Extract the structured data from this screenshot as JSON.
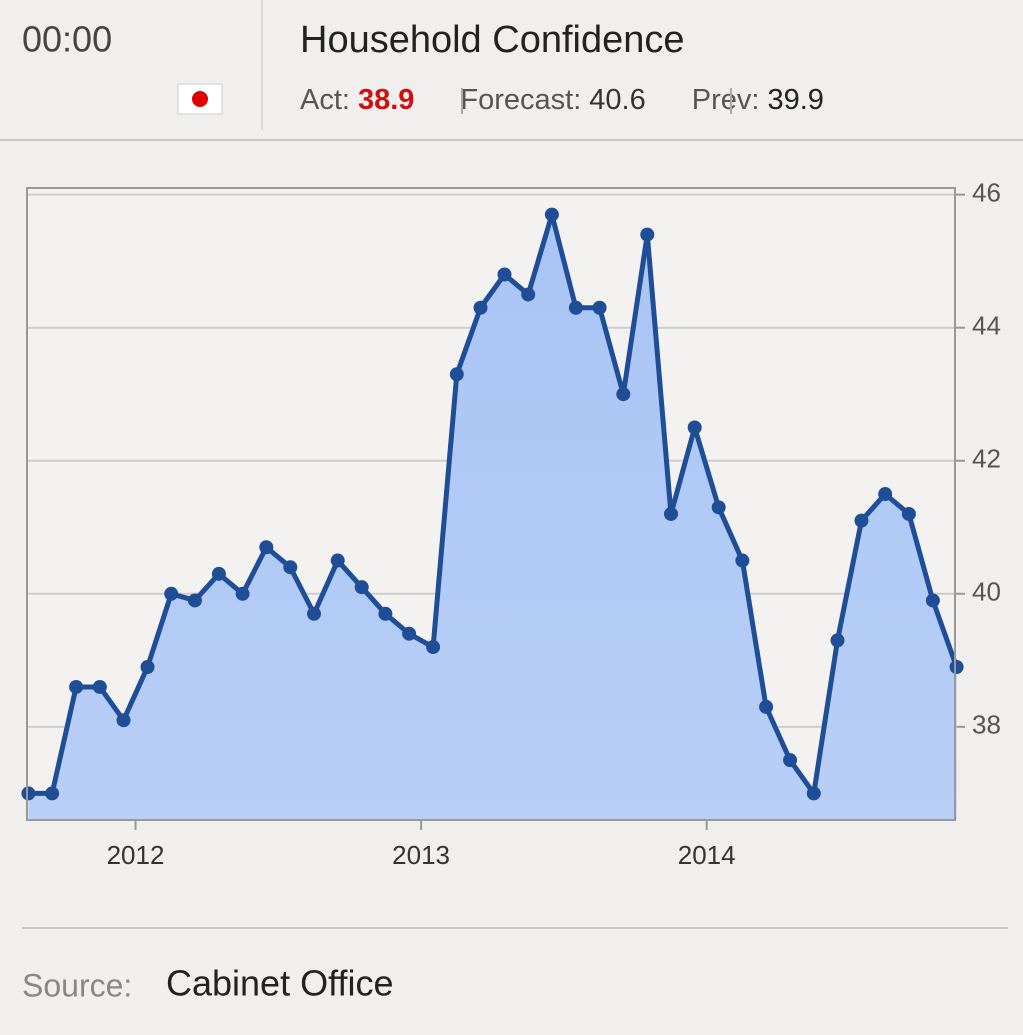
{
  "header": {
    "time": "00:00",
    "title": "Household Confidence",
    "actual_label": "Act:",
    "actual": 38.9,
    "forecast_label": "Forecast:",
    "forecast": 40.6,
    "previous_label": "Prev:",
    "previous": 39.9
  },
  "chart_data": {
    "type": "area",
    "x": [
      2011.625,
      2011.708,
      2011.792,
      2011.875,
      2011.958,
      2012.042,
      2012.125,
      2012.208,
      2012.292,
      2012.375,
      2012.458,
      2012.542,
      2012.625,
      2012.708,
      2012.792,
      2012.875,
      2012.958,
      2013.042,
      2013.125,
      2013.208,
      2013.292,
      2013.375,
      2013.458,
      2013.542,
      2013.625,
      2013.708,
      2013.792,
      2013.875,
      2013.958,
      2014.042,
      2014.125,
      2014.208,
      2014.292,
      2014.375,
      2014.458,
      2014.542,
      2014.625,
      2014.708,
      2014.792,
      2014.875
    ],
    "series": [
      {
        "color": "#1f4e96",
        "fill": "#a9c4f5",
        "values": [
          37.0,
          37.0,
          38.6,
          38.6,
          38.1,
          38.9,
          40.0,
          39.9,
          40.3,
          40.0,
          40.7,
          40.4,
          39.7,
          40.5,
          40.1,
          39.7,
          39.4,
          39.2,
          43.3,
          44.3,
          44.8,
          44.5,
          45.7,
          44.3,
          44.3,
          43.0,
          45.4,
          41.2,
          42.5,
          41.3,
          40.5,
          38.3,
          37.5,
          37.0,
          39.3,
          41.1,
          41.5,
          41.2,
          39.9,
          38.9
        ]
      }
    ],
    "xlim": [
      2011.62,
      2014.88
    ],
    "xticks": [
      2012,
      2013,
      2014
    ],
    "ylim": [
      36.6,
      46.1
    ],
    "yticks": [
      38,
      40,
      42,
      44,
      46
    ],
    "grid": true,
    "y_axis_side": "right"
  },
  "footer": {
    "source_label": "Source:",
    "source": "Cabinet Office"
  }
}
